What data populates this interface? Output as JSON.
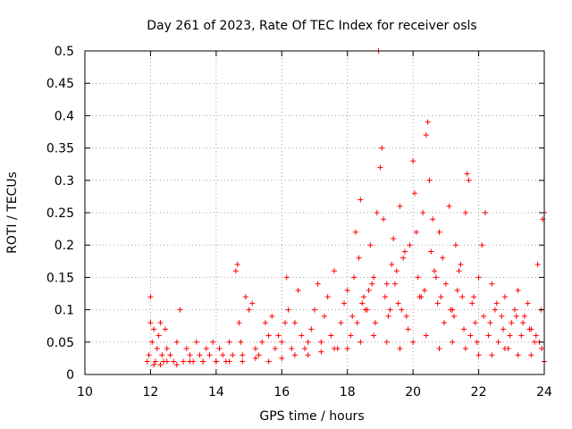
{
  "chart_data": {
    "type": "scatter",
    "title": "Day 261 of 2023, Rate Of TEC Index for receiver osls",
    "xlabel": "GPS time / hours",
    "ylabel": "ROTI / TECUs",
    "xlim": [
      10,
      24
    ],
    "ylim": [
      0,
      0.5
    ],
    "xticks": [
      10,
      12,
      14,
      16,
      18,
      20,
      22,
      24
    ],
    "xtick_labels": [
      "10",
      "12",
      "14",
      "16",
      "18",
      "20",
      "22",
      "24"
    ],
    "yticks": [
      0,
      0.05,
      0.1,
      0.15,
      0.2,
      0.25,
      0.3,
      0.35,
      0.4,
      0.45,
      0.5
    ],
    "ytick_labels": [
      "0",
      "0.05",
      "0.1",
      "0.15",
      "0.2",
      "0.25",
      "0.3",
      "0.35",
      "0.4",
      "0.45",
      "0.5"
    ],
    "grid": true,
    "marker": "+",
    "color": "#ff0000",
    "series": [
      {
        "name": "ROTI",
        "x": [
          11.9,
          11.95,
          12.0,
          12.0,
          12.05,
          12.1,
          12.15,
          12.2,
          12.25,
          12.3,
          12.35,
          12.4,
          12.45,
          12.5,
          12.6,
          12.7,
          12.8,
          12.9,
          13.0,
          13.1,
          13.2,
          13.3,
          13.4,
          13.5,
          13.6,
          13.7,
          13.8,
          13.9,
          14.0,
          14.1,
          14.2,
          14.3,
          14.4,
          14.5,
          14.6,
          14.65,
          14.7,
          14.75,
          14.8,
          14.9,
          15.0,
          15.1,
          15.2,
          15.3,
          15.4,
          15.5,
          15.6,
          15.7,
          15.8,
          15.9,
          16.0,
          16.1,
          16.15,
          16.2,
          16.3,
          16.4,
          16.5,
          16.6,
          16.7,
          16.8,
          16.9,
          17.0,
          17.1,
          17.2,
          17.3,
          17.4,
          17.5,
          17.6,
          17.7,
          17.8,
          17.9,
          18.0,
          18.1,
          18.2,
          18.25,
          18.3,
          18.35,
          18.4,
          18.5,
          18.6,
          18.7,
          18.8,
          18.9,
          18.95,
          19.0,
          19.05,
          19.1,
          19.2,
          19.3,
          19.4,
          19.5,
          19.6,
          19.7,
          19.8,
          19.9,
          20.0,
          20.05,
          20.1,
          20.2,
          20.3,
          20.4,
          20.45,
          20.5,
          20.55,
          20.6,
          20.7,
          20.8,
          20.9,
          21.0,
          21.1,
          21.2,
          21.3,
          21.4,
          21.5,
          21.6,
          21.65,
          21.7,
          21.8,
          21.9,
          22.0,
          22.1,
          22.2,
          22.3,
          22.4,
          22.5,
          22.6,
          22.7,
          22.8,
          22.9,
          23.0,
          23.1,
          23.2,
          23.3,
          23.4,
          23.5,
          23.6,
          23.7,
          23.8,
          23.9,
          23.95,
          24.0,
          12.1,
          12.3,
          12.5,
          12.8,
          13.2,
          13.6,
          14.0,
          14.4,
          14.8,
          15.2,
          15.6,
          16.0,
          16.4,
          16.8,
          17.2,
          17.6,
          18.0,
          18.4,
          18.8,
          19.2,
          19.6,
          20.0,
          20.4,
          20.8,
          21.2,
          21.6,
          22.0,
          22.4,
          22.8,
          23.2,
          23.6,
          24.0,
          18.55,
          18.75,
          19.15,
          19.35,
          19.55,
          19.75,
          20.15,
          20.35,
          20.65,
          20.85,
          21.15,
          21.35,
          21.45,
          21.85,
          22.15,
          22.35,
          22.55,
          22.75,
          22.95,
          23.15,
          23.35,
          23.55,
          23.75,
          23.85,
          23.92,
          18.15,
          18.45,
          18.65,
          18.85,
          19.25,
          19.45,
          19.65,
          19.85,
          20.25,
          20.75,
          20.95,
          21.25,
          21.55,
          21.75,
          21.95
        ],
        "y": [
          0.02,
          0.03,
          0.08,
          0.12,
          0.05,
          0.07,
          0.02,
          0.04,
          0.06,
          0.08,
          0.03,
          0.02,
          0.07,
          0.04,
          0.03,
          0.02,
          0.05,
          0.1,
          0.02,
          0.04,
          0.03,
          0.02,
          0.05,
          0.03,
          0.02,
          0.04,
          0.03,
          0.05,
          0.02,
          0.04,
          0.03,
          0.02,
          0.05,
          0.03,
          0.16,
          0.17,
          0.08,
          0.05,
          0.03,
          0.12,
          0.1,
          0.11,
          0.04,
          0.03,
          0.05,
          0.08,
          0.06,
          0.09,
          0.04,
          0.06,
          0.05,
          0.08,
          0.15,
          0.1,
          0.04,
          0.08,
          0.13,
          0.06,
          0.04,
          0.05,
          0.07,
          0.1,
          0.14,
          0.05,
          0.09,
          0.12,
          0.06,
          0.16,
          0.04,
          0.08,
          0.11,
          0.13,
          0.06,
          0.15,
          0.22,
          0.08,
          0.18,
          0.27,
          0.12,
          0.1,
          0.2,
          0.15,
          0.25,
          0.5,
          0.32,
          0.35,
          0.24,
          0.14,
          0.1,
          0.21,
          0.16,
          0.26,
          0.18,
          0.09,
          0.2,
          0.33,
          0.28,
          0.22,
          0.12,
          0.25,
          0.37,
          0.39,
          0.3,
          0.19,
          0.24,
          0.15,
          0.22,
          0.18,
          0.14,
          0.26,
          0.1,
          0.2,
          0.16,
          0.12,
          0.25,
          0.31,
          0.3,
          0.11,
          0.08,
          0.15,
          0.2,
          0.25,
          0.06,
          0.14,
          0.1,
          0.05,
          0.09,
          0.12,
          0.04,
          0.08,
          0.1,
          0.13,
          0.06,
          0.09,
          0.11,
          0.07,
          0.05,
          0.17,
          0.1,
          0.24,
          0.25,
          0.015,
          0.015,
          0.02,
          0.015,
          0.02,
          0.02,
          0.02,
          0.02,
          0.02,
          0.025,
          0.02,
          0.025,
          0.03,
          0.03,
          0.035,
          0.04,
          0.04,
          0.05,
          0.06,
          0.05,
          0.04,
          0.05,
          0.06,
          0.04,
          0.05,
          0.04,
          0.03,
          0.03,
          0.04,
          0.03,
          0.03,
          0.02,
          0.1,
          0.14,
          0.12,
          0.17,
          0.11,
          0.19,
          0.15,
          0.13,
          0.16,
          0.12,
          0.1,
          0.13,
          0.17,
          0.12,
          0.09,
          0.08,
          0.11,
          0.07,
          0.06,
          0.09,
          0.08,
          0.07,
          0.06,
          0.05,
          0.04,
          0.09,
          0.11,
          0.13,
          0.08,
          0.09,
          0.14,
          0.1,
          0.07,
          0.12,
          0.11,
          0.08,
          0.09,
          0.07,
          0.06,
          0.05
        ]
      }
    ]
  }
}
